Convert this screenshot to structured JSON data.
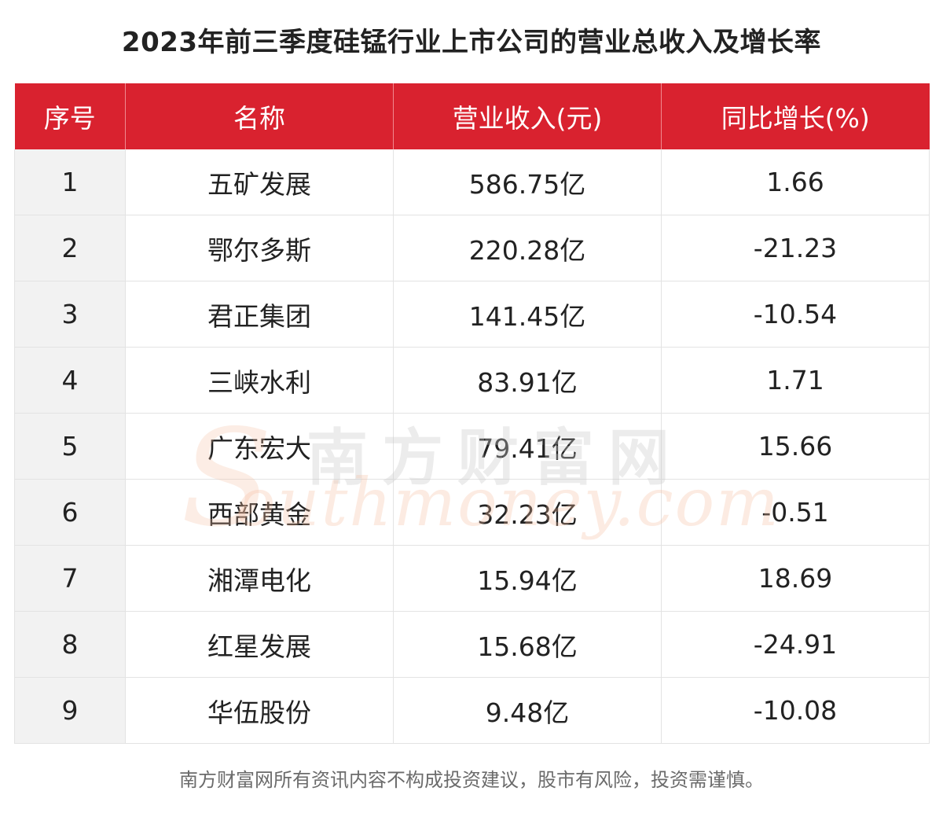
{
  "title": "2023年前三季度硅锰行业上市公司的营业总收入及增长率",
  "chart_data": {
    "type": "table",
    "title": "2023年前三季度硅锰行业上市公司的营业总收入及增长率",
    "columns": [
      "序号",
      "名称",
      "营业收入(元)",
      "同比增长(%)"
    ],
    "rows": [
      [
        "1",
        "五矿发展",
        "586.75亿",
        "1.66"
      ],
      [
        "2",
        "鄂尔多斯",
        "220.28亿",
        "-21.23"
      ],
      [
        "3",
        "君正集团",
        "141.45亿",
        "-10.54"
      ],
      [
        "4",
        "三峡水利",
        "83.91亿",
        "1.71"
      ],
      [
        "5",
        "广东宏大",
        "79.41亿",
        "15.66"
      ],
      [
        "6",
        "西部黄金",
        "32.23亿",
        "-0.51"
      ],
      [
        "7",
        "湘潭电化",
        "15.94亿",
        "18.69"
      ],
      [
        "8",
        "红星发展",
        "15.68亿",
        "-24.91"
      ],
      [
        "9",
        "华伍股份",
        "9.48亿",
        "-10.08"
      ]
    ]
  },
  "watermark": {
    "cn": "南方财富网",
    "en": "outhmoney.com",
    "logo_letter": "S"
  },
  "footer": "南方财富网所有资讯内容不构成投资建议，股市有风险，投资需谨慎。",
  "colors": {
    "header_bg": "#d9222f",
    "header_text": "#ffffff",
    "index_col_bg": "#f2f2f2"
  }
}
